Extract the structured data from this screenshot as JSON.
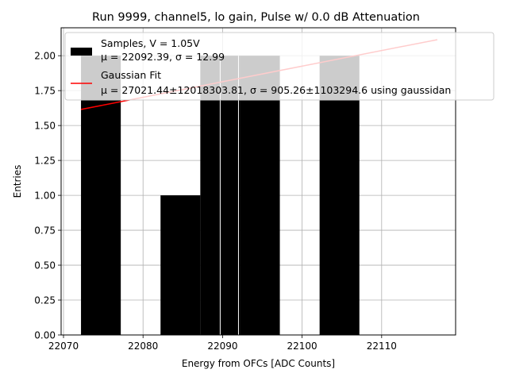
{
  "chart_data": {
    "type": "bar",
    "title": "Run 9999, channel5, lo gain, Pulse w/ 0.0 dB Attenuation",
    "xlabel": "Energy from OFCs [ADC Counts]",
    "ylabel": "Entries",
    "xlim": [
      22069.7,
      22119.3
    ],
    "ylim": [
      0,
      2.2
    ],
    "grid": true,
    "legend_placement": "top-right",
    "x_ticks": [
      22070,
      22080,
      22090,
      22100,
      22110
    ],
    "x_tick_labels": [
      "22070",
      "22080",
      "22090",
      "22100",
      "22110"
    ],
    "y_ticks": [
      0,
      0.25,
      0.5,
      0.75,
      1.0,
      1.25,
      1.5,
      1.75,
      2.0
    ],
    "y_tick_labels": [
      "0.00",
      "0.25",
      "0.50",
      "0.75",
      "1.00",
      "1.25",
      "1.50",
      "1.75",
      "2.00"
    ],
    "histogram": {
      "name": "Samples, V = 1.05V",
      "stats_label": "μ = 22092.39, σ = 12.99",
      "color": "#000000",
      "bins": [
        {
          "x0": 22072.2,
          "x1": 22077.2,
          "count": 2
        },
        {
          "x0": 22082.2,
          "x1": 22087.2,
          "count": 1
        },
        {
          "x0": 22087.2,
          "x1": 22092.2,
          "count": 2
        },
        {
          "x0": 22092.2,
          "x1": 22097.2,
          "count": 2
        },
        {
          "x0": 22102.2,
          "x1": 22107.2,
          "count": 2
        }
      ]
    },
    "fit": {
      "name": "Gaussian Fit",
      "stats_label": "μ = 27021.44±12018303.81, σ = 905.26±1103294.6 using gaussidan",
      "color": "#ff0000",
      "points": [
        [
          22072.2,
          1.615
        ],
        [
          22117.0,
          2.115
        ]
      ]
    },
    "bin_edge_lines": [
      22089.7,
      22092.0
    ]
  }
}
